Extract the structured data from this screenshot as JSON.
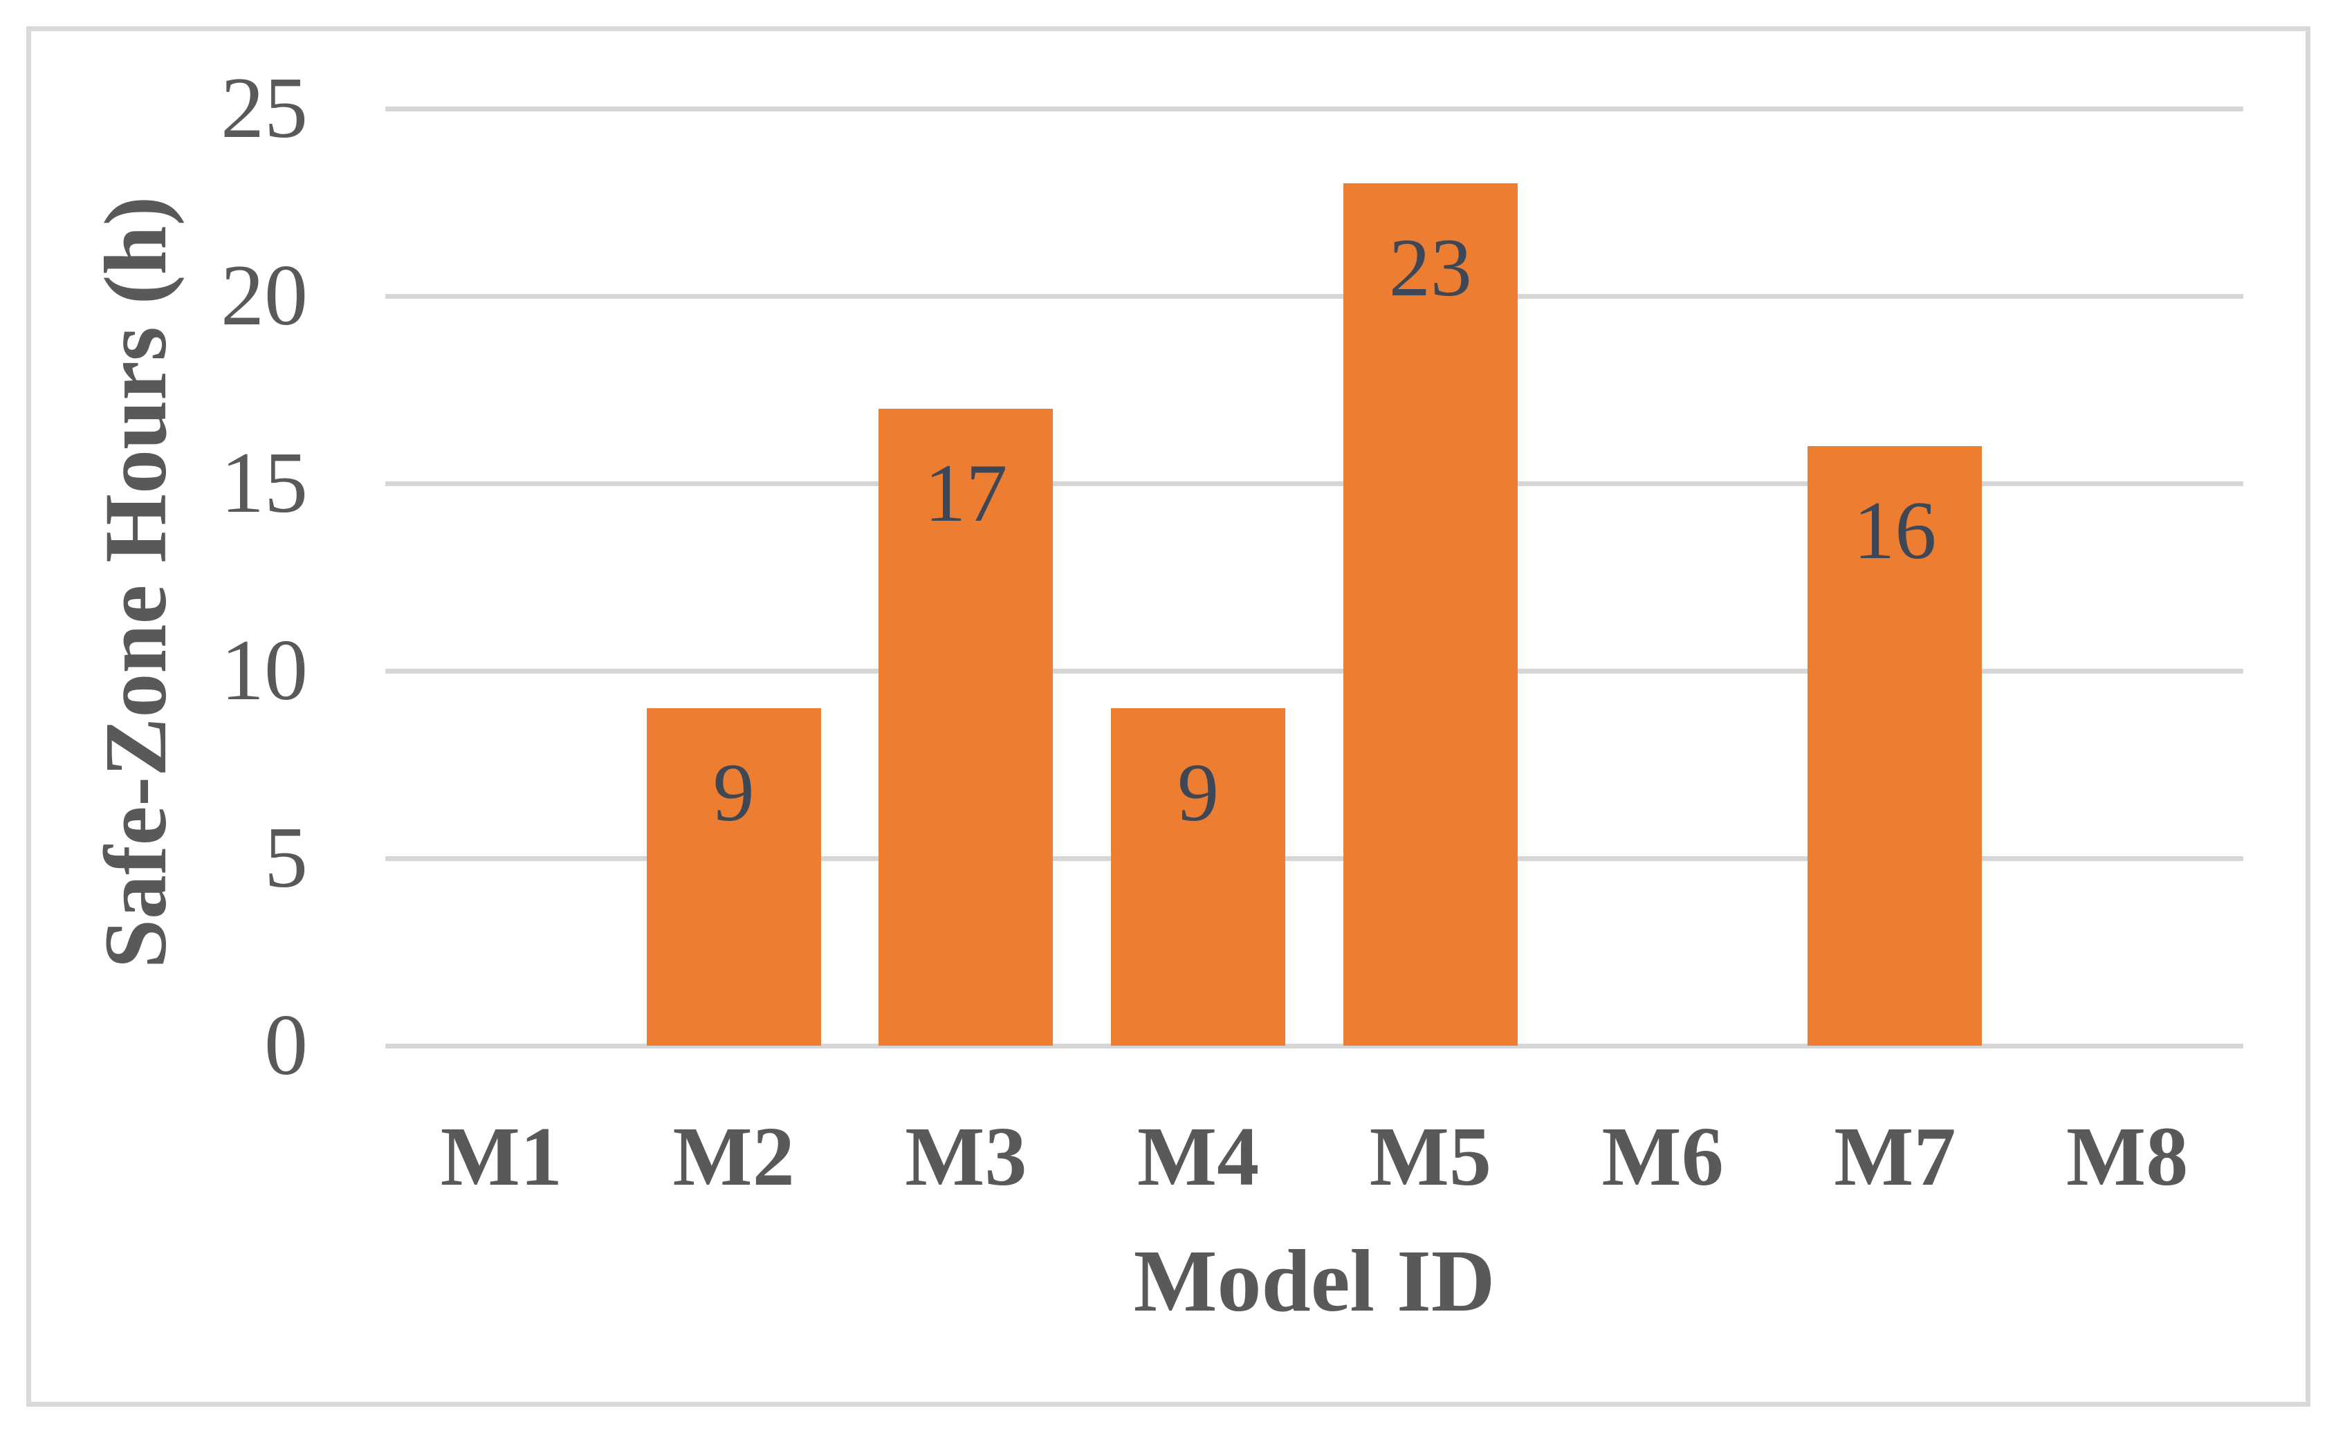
{
  "chart_data": {
    "type": "bar",
    "title": "",
    "xlabel": "Model ID",
    "ylabel": "Safe-Zone Hours (h)",
    "categories": [
      "M1",
      "M2",
      "M3",
      "M4",
      "M5",
      "M6",
      "M7",
      "M8"
    ],
    "values": [
      0,
      9,
      17,
      9,
      23,
      0,
      16,
      0
    ],
    "bar_labels": [
      "",
      "9",
      "17",
      "9",
      "23",
      "",
      "16",
      ""
    ],
    "ylim": [
      0,
      25
    ],
    "yticks": [
      0,
      5,
      10,
      15,
      20,
      25
    ],
    "grid": true,
    "legend_position": "none",
    "bar_color": "#ED7D31",
    "data_label_color": "#3E4756",
    "axis_text_color": "#595959",
    "gridline_color": "#D6D6D6",
    "frame_border_color": "#D9D9D9"
  }
}
